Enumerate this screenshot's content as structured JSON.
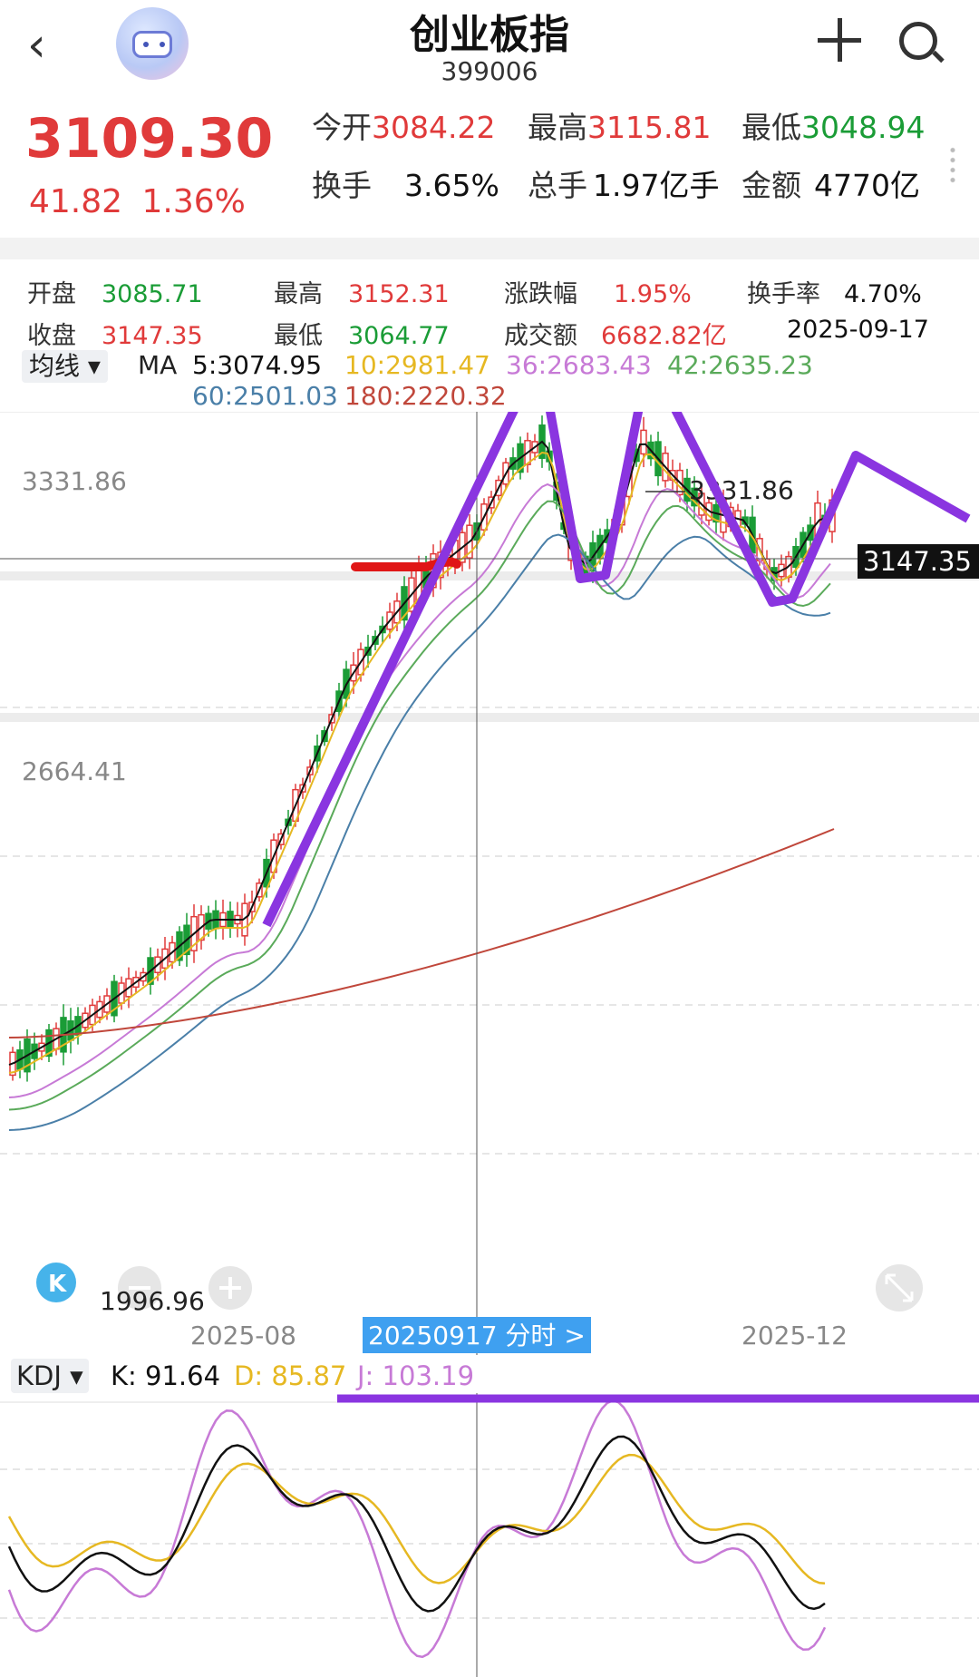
{
  "header": {
    "title": "创业板指",
    "code": "399006",
    "back_icon": "chevron-left-icon",
    "add_icon": "plus-icon",
    "search_icon": "search-icon"
  },
  "quote": {
    "price": "3109.30",
    "change": "41.82",
    "change_pct": "1.36%",
    "open_label": "今开",
    "open": "3084.22",
    "high_label": "最高",
    "high": "3115.81",
    "low_label": "最低",
    "low": "3048.94",
    "turnover_label": "换手",
    "turnover": "3.65%",
    "volume_label": "总手",
    "volume": "1.97亿手",
    "amount_label": "金额",
    "amount": "4770亿"
  },
  "day_info": {
    "open_label": "开盘",
    "open": "3085.71",
    "high_label": "最高",
    "high": "3152.31",
    "pct_label": "涨跌幅",
    "pct": "1.95%",
    "turn_label": "换手率",
    "turn": "4.70%",
    "close_label": "收盘",
    "close": "3147.35",
    "low_label": "最低",
    "low": "3064.77",
    "amount_label": "成交额",
    "amount": "6682.82亿",
    "date": "2025-09-17"
  },
  "ma": {
    "selector": "均线 ▾",
    "prefix": "MA",
    "ma5": "5:3074.95",
    "ma10": "10:2981.47",
    "ma36": "36:2683.43",
    "ma42": "42:2635.23",
    "ma60": "60:2501.03",
    "ma180": "180:2220.32",
    "colors": {
      "ma5": "#111111",
      "ma10": "#e6b822",
      "ma36": "#c77ad6",
      "ma42": "#5aaa5a",
      "ma60": "#4a7fa8",
      "ma180": "#c0473b"
    }
  },
  "chart": {
    "top_price": "3331.86",
    "mid_price": "2664.41",
    "bottom_price": "1996.96",
    "peak_label": "3331.86",
    "crosshair_label": "3147.35",
    "low_label": "1996.96",
    "axis_dates": [
      "2025-08",
      "2025-12"
    ],
    "tooltip": "20250917 分时 >",
    "minus_icon": "zoom-out-icon",
    "plus_icon": "zoom-in-icon",
    "expand_icon": "expand-icon",
    "k_logo": "K"
  },
  "kdj": {
    "selector": "KDJ ▾",
    "k": "K: 91.64",
    "d": "D: 85.87",
    "j": "J: 103.19"
  }
}
